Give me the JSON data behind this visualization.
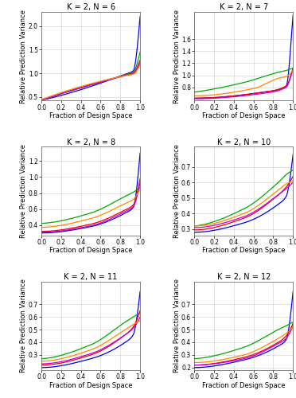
{
  "panels": [
    {
      "title": "K = 2, N = 6",
      "ylim": [
        0.42,
        2.3
      ],
      "yticks": [
        0.5,
        1.0,
        1.5,
        2.0
      ],
      "curves": {
        "blue": {
          "segments": [
            [
              0,
              0.43
            ],
            [
              0.85,
              0.98
            ],
            [
              0.93,
              1.05
            ],
            [
              1.0,
              2.2
            ]
          ]
        },
        "green": {
          "segments": [
            [
              0,
              0.44
            ],
            [
              0.85,
              0.97
            ],
            [
              0.93,
              1.02
            ],
            [
              1.0,
              1.45
            ]
          ]
        },
        "red": {
          "segments": [
            [
              0,
              0.43
            ],
            [
              0.85,
              0.96
            ],
            [
              0.93,
              1.0
            ],
            [
              1.0,
              1.28
            ]
          ]
        },
        "purple": {
          "segments": [
            [
              0,
              0.43
            ],
            [
              0.85,
              0.95
            ],
            [
              0.93,
              0.99
            ],
            [
              1.0,
              1.22
            ]
          ]
        },
        "orange": {
          "segments": [
            [
              0,
              0.44
            ],
            [
              0.85,
              0.95
            ],
            [
              0.93,
              0.98
            ],
            [
              1.0,
              1.18
            ]
          ]
        }
      }
    },
    {
      "title": "K = 2, N = 7",
      "ylim": [
        0.58,
        2.05
      ],
      "yticks": [
        0.8,
        1.0,
        1.2,
        1.4,
        1.6
      ],
      "curves": {
        "blue": {
          "segments": [
            [
              0,
              0.62
            ],
            [
              0.7,
              0.72
            ],
            [
              0.93,
              0.82
            ],
            [
              1.0,
              2.0
            ]
          ]
        },
        "green": {
          "segments": [
            [
              0,
              0.72
            ],
            [
              0.5,
              0.88
            ],
            [
              0.85,
              1.05
            ],
            [
              0.93,
              1.08
            ],
            [
              1.0,
              1.12
            ]
          ]
        },
        "red": {
          "segments": [
            [
              0,
              0.62
            ],
            [
              0.7,
              0.72
            ],
            [
              0.93,
              0.82
            ],
            [
              1.0,
              1.12
            ]
          ]
        },
        "purple": {
          "segments": [
            [
              0,
              0.61
            ],
            [
              0.7,
              0.7
            ],
            [
              0.93,
              0.8
            ],
            [
              1.0,
              1.1
            ]
          ]
        },
        "orange": {
          "segments": [
            [
              0,
              0.66
            ],
            [
              0.6,
              0.78
            ],
            [
              0.85,
              0.95
            ],
            [
              0.93,
              0.98
            ],
            [
              1.0,
              1.08
            ]
          ]
        }
      }
    },
    {
      "title": "K = 2, N = 8",
      "ylim": [
        0.27,
        1.38
      ],
      "yticks": [
        0.4,
        0.6,
        0.8,
        1.0,
        1.2
      ],
      "curves": {
        "blue": {
          "segments": [
            [
              0,
              0.3
            ],
            [
              0.5,
              0.38
            ],
            [
              0.85,
              0.55
            ],
            [
              0.93,
              0.62
            ],
            [
              1.0,
              1.3
            ]
          ]
        },
        "green": {
          "segments": [
            [
              0,
              0.42
            ],
            [
              0.5,
              0.55
            ],
            [
              0.85,
              0.76
            ],
            [
              0.93,
              0.81
            ],
            [
              1.0,
              0.87
            ]
          ]
        },
        "red": {
          "segments": [
            [
              0,
              0.32
            ],
            [
              0.5,
              0.41
            ],
            [
              0.85,
              0.59
            ],
            [
              0.93,
              0.65
            ],
            [
              1.0,
              0.98
            ]
          ]
        },
        "purple": {
          "segments": [
            [
              0,
              0.31
            ],
            [
              0.5,
              0.39
            ],
            [
              0.85,
              0.57
            ],
            [
              0.93,
              0.63
            ],
            [
              1.0,
              0.93
            ]
          ]
        },
        "orange": {
          "segments": [
            [
              0,
              0.37
            ],
            [
              0.5,
              0.48
            ],
            [
              0.85,
              0.67
            ],
            [
              0.93,
              0.72
            ],
            [
              1.0,
              0.85
            ]
          ]
        }
      }
    },
    {
      "title": "K = 2, N = 10",
      "ylim": [
        0.26,
        0.83
      ],
      "yticks": [
        0.3,
        0.4,
        0.5,
        0.6,
        0.7
      ],
      "curves": {
        "blue": {
          "segments": [
            [
              0,
              0.28
            ],
            [
              0.5,
              0.34
            ],
            [
              0.85,
              0.46
            ],
            [
              0.93,
              0.51
            ],
            [
              1.0,
              0.78
            ]
          ]
        },
        "green": {
          "segments": [
            [
              0,
              0.32
            ],
            [
              0.5,
              0.43
            ],
            [
              0.85,
              0.6
            ],
            [
              0.93,
              0.65
            ],
            [
              1.0,
              0.68
            ]
          ]
        },
        "red": {
          "segments": [
            [
              0,
              0.295
            ],
            [
              0.5,
              0.37
            ],
            [
              0.85,
              0.52
            ],
            [
              0.93,
              0.57
            ],
            [
              1.0,
              0.64
            ]
          ]
        },
        "purple": {
          "segments": [
            [
              0,
              0.31
            ],
            [
              0.5,
              0.38
            ],
            [
              0.85,
              0.52
            ],
            [
              0.93,
              0.56
            ],
            [
              1.0,
              0.6
            ]
          ]
        },
        "orange": {
          "segments": [
            [
              0,
              0.32
            ],
            [
              0.5,
              0.4
            ],
            [
              0.85,
              0.55
            ],
            [
              0.93,
              0.59
            ],
            [
              1.0,
              0.61
            ]
          ]
        }
      }
    },
    {
      "title": "K = 2, N = 11",
      "ylim": [
        0.18,
        0.88
      ],
      "yticks": [
        0.3,
        0.4,
        0.5,
        0.6,
        0.7
      ],
      "curves": {
        "blue": {
          "segments": [
            [
              0,
              0.2
            ],
            [
              0.5,
              0.27
            ],
            [
              0.85,
              0.4
            ],
            [
              0.93,
              0.46
            ],
            [
              1.0,
              0.8
            ]
          ]
        },
        "green": {
          "segments": [
            [
              0,
              0.27
            ],
            [
              0.5,
              0.38
            ],
            [
              0.85,
              0.56
            ],
            [
              0.93,
              0.6
            ],
            [
              1.0,
              0.63
            ]
          ]
        },
        "red": {
          "segments": [
            [
              0,
              0.22
            ],
            [
              0.5,
              0.3
            ],
            [
              0.85,
              0.46
            ],
            [
              0.93,
              0.52
            ],
            [
              1.0,
              0.65
            ]
          ]
        },
        "purple": {
          "segments": [
            [
              0,
              0.23
            ],
            [
              0.5,
              0.31
            ],
            [
              0.85,
              0.46
            ],
            [
              0.93,
              0.51
            ],
            [
              1.0,
              0.6
            ]
          ]
        },
        "orange": {
          "segments": [
            [
              0,
              0.25
            ],
            [
              0.5,
              0.34
            ],
            [
              0.85,
              0.5
            ],
            [
              0.93,
              0.54
            ],
            [
              1.0,
              0.57
            ]
          ]
        }
      }
    },
    {
      "title": "K = 2, N = 12",
      "ylim": [
        0.18,
        0.88
      ],
      "yticks": [
        0.2,
        0.3,
        0.4,
        0.5,
        0.6,
        0.7
      ],
      "curves": {
        "blue": {
          "segments": [
            [
              0,
              0.2
            ],
            [
              0.5,
              0.26
            ],
            [
              0.85,
              0.37
            ],
            [
              0.93,
              0.42
            ],
            [
              1.0,
              0.8
            ]
          ]
        },
        "green": {
          "segments": [
            [
              0,
              0.27
            ],
            [
              0.5,
              0.36
            ],
            [
              0.85,
              0.5
            ],
            [
              0.93,
              0.53
            ],
            [
              1.0,
              0.56
            ]
          ]
        },
        "red": {
          "segments": [
            [
              0,
              0.22
            ],
            [
              0.5,
              0.28
            ],
            [
              0.85,
              0.4
            ],
            [
              0.93,
              0.45
            ],
            [
              1.0,
              0.55
            ]
          ]
        },
        "purple": {
          "segments": [
            [
              0,
              0.22
            ],
            [
              0.5,
              0.27
            ],
            [
              0.85,
              0.39
            ],
            [
              0.93,
              0.43
            ],
            [
              1.0,
              0.53
            ]
          ]
        },
        "orange": {
          "segments": [
            [
              0,
              0.24
            ],
            [
              0.5,
              0.3
            ],
            [
              0.85,
              0.43
            ],
            [
              0.93,
              0.47
            ],
            [
              1.0,
              0.52
            ]
          ]
        }
      }
    }
  ],
  "colors": {
    "blue": "#0000EE",
    "green": "#00AA00",
    "red": "#EE0000",
    "purple": "#CC00CC",
    "orange": "#FF8800"
  },
  "xlabel": "Fraction of Design Space",
  "ylabel": "Relative Prediction Variance",
  "xlim": [
    0.0,
    1.0
  ],
  "xticks": [
    0.0,
    0.2,
    0.4,
    0.6,
    0.8,
    1.0
  ],
  "xtick_labels": [
    "0.0",
    "0.2",
    "0.4",
    "0.6",
    "0.8",
    "1.0"
  ],
  "linewidth": 0.9,
  "background_color": "#ffffff",
  "grid_color": "#cccccc",
  "title_fontsize": 7,
  "axis_label_fontsize": 6,
  "tick_fontsize": 5.5
}
